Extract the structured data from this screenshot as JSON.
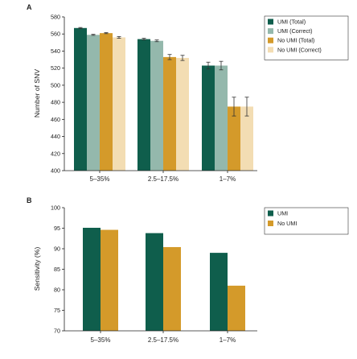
{
  "chart_data": [
    {
      "panel_label": "A",
      "type": "bar",
      "ylabel": "Number of SNV",
      "ylim": [
        400,
        580
      ],
      "yticks": [
        "400",
        "420",
        "440",
        "460",
        "480",
        "500",
        "520",
        "540",
        "560",
        "580"
      ],
      "categories": [
        "5–35%",
        "2.5–17.5%",
        "1–7%"
      ],
      "series": [
        {
          "name": "UMI (Total)",
          "color": "#0f5e4c",
          "values": [
            567,
            554,
            523
          ],
          "errors": [
            0.6,
            1,
            4
          ]
        },
        {
          "name": "UMI (Correct)",
          "color": "#94b8ac",
          "values": [
            559,
            552,
            523
          ],
          "errors": [
            0.6,
            1,
            5
          ]
        },
        {
          "name": "No UMI (Total)",
          "color": "#d49a2a",
          "values": [
            561,
            533,
            475
          ],
          "errors": [
            0.6,
            3,
            11
          ]
        },
        {
          "name": "No UMI (Correct)",
          "color": "#f3ddb3",
          "values": [
            556,
            532,
            475
          ],
          "errors": [
            1,
            3,
            11
          ]
        }
      ],
      "legend": "top-right",
      "grid": false
    },
    {
      "panel_label": "B",
      "type": "bar",
      "ylabel": "Sensitivity (%)",
      "ylim": [
        70,
        100
      ],
      "yticks": [
        "70",
        "75",
        "80",
        "85",
        "90",
        "95",
        "100"
      ],
      "categories": [
        "5–35%",
        "2.5–17.5%",
        "1–7%"
      ],
      "series": [
        {
          "name": "UMI",
          "color": "#0f5e4c",
          "values": [
            95.1,
            93.8,
            89
          ]
        },
        {
          "name": "No UMI",
          "color": "#d49a2a",
          "values": [
            94.6,
            90.4,
            81
          ]
        }
      ],
      "legend": "top-right",
      "grid": false
    }
  ]
}
